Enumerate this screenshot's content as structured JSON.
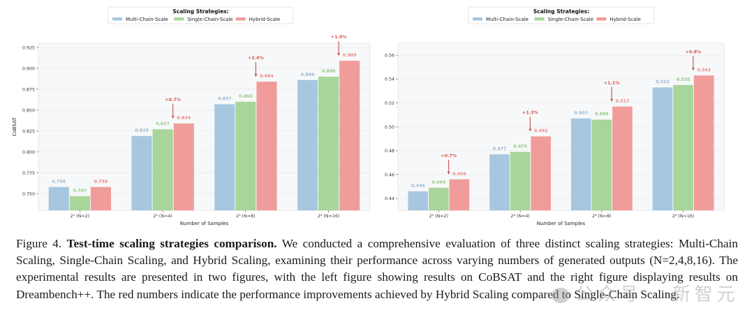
{
  "chart_data": [
    {
      "type": "bar",
      "title": "",
      "legend": {
        "title": "Scaling Strategies:",
        "placement": "top-center",
        "entries": [
          "Multi-Chain-Scale",
          "Single-Chain-Scale",
          "Hybrid-Scale"
        ]
      },
      "xlabel": "Number of Samples",
      "ylabel": "CoBSAT",
      "categories": [
        "2¹ (N=2)",
        "2² (N=4)",
        "2³ (N=8)",
        "2⁴ (N=16)"
      ],
      "series": [
        {
          "name": "Multi-Chain-Scale",
          "color": "#a7c7e0",
          "label_color": "#9ab8d3",
          "values": [
            0.758,
            0.819,
            0.857,
            0.886
          ]
        },
        {
          "name": "Single-Chain-Scale",
          "color": "#a8d59a",
          "label_color": "#92c983",
          "values": [
            0.747,
            0.827,
            0.86,
            0.89
          ]
        },
        {
          "name": "Hybrid-Scale",
          "color": "#f09c9a",
          "label_color": "#e98886",
          "values": [
            0.758,
            0.834,
            0.884,
            0.909
          ]
        }
      ],
      "annotations": [
        {
          "category_index": 1,
          "text": "+0.7%"
        },
        {
          "category_index": 2,
          "text": "+2.4%"
        },
        {
          "category_index": 3,
          "text": "+1.9%"
        }
      ],
      "ylim": [
        0.73,
        0.93
      ],
      "yticks": [
        0.75,
        0.775,
        0.8,
        0.825,
        0.85,
        0.875,
        0.9,
        0.925
      ],
      "ytick_labels": [
        "0.750",
        "0.775",
        "0.800",
        "0.825",
        "0.850",
        "0.875",
        "0.900",
        "0.925"
      ],
      "grid": true
    },
    {
      "type": "bar",
      "title": "",
      "legend": {
        "title": "Scaling Strategies:",
        "placement": "top-center",
        "entries": [
          "Multi-Chain-Scale",
          "Single-Chain-Scale",
          "Hybrid-Scale"
        ]
      },
      "xlabel": "Number of Samples",
      "ylabel": "Dreambench++",
      "categories": [
        "2¹ (N=2)",
        "2² (N=4)",
        "2³ (N=8)",
        "2⁴ (N=16)"
      ],
      "series": [
        {
          "name": "Multi-Chain-Scale",
          "color": "#a7c7e0",
          "label_color": "#9ab8d3",
          "values": [
            0.446,
            0.477,
            0.507,
            0.533
          ]
        },
        {
          "name": "Single-Chain-Scale",
          "color": "#a8d59a",
          "label_color": "#92c983",
          "values": [
            0.449,
            0.479,
            0.506,
            0.535
          ]
        },
        {
          "name": "Hybrid-Scale",
          "color": "#f09c9a",
          "label_color": "#e98886",
          "values": [
            0.456,
            0.492,
            0.517,
            0.543
          ]
        }
      ],
      "annotations": [
        {
          "category_index": 0,
          "text": "+0.7%"
        },
        {
          "category_index": 1,
          "text": "+1.3%"
        },
        {
          "category_index": 2,
          "text": "+1.1%"
        },
        {
          "category_index": 3,
          "text": "+0.8%"
        }
      ],
      "ylim": [
        0.43,
        0.57
      ],
      "yticks": [
        0.44,
        0.46,
        0.48,
        0.5,
        0.52,
        0.54,
        0.56
      ],
      "ytick_labels": [
        "0.44",
        "0.46",
        "0.48",
        "0.50",
        "0.52",
        "0.54",
        "0.56"
      ],
      "grid": true
    }
  ],
  "caption": {
    "figure_label": "Figure 4.",
    "bold_title": "Test-time scaling strategies comparison.",
    "body": "We conducted a comprehensive evaluation of three distinct scaling strategies: Multi-Chain Scaling, Single-Chain Scaling, and Hybrid Scaling, examining their performance across varying numbers of generated outputs (N=2,4,8,16). The experimental results are presented in two figures, with the left figure showing results on CoBSAT and the right figure displaying results on Dreambench++. The red numbers indicate the performance improvements achieved by Hybrid Scaling compared to Single-Chain Scaling."
  },
  "watermark": {
    "text": "公众号 · 新智元"
  },
  "colors": {
    "annotation": "#d9534f",
    "arrow": "#c0504d",
    "plot_bg": "#f7f8f9",
    "grid": "#e8eaec"
  }
}
